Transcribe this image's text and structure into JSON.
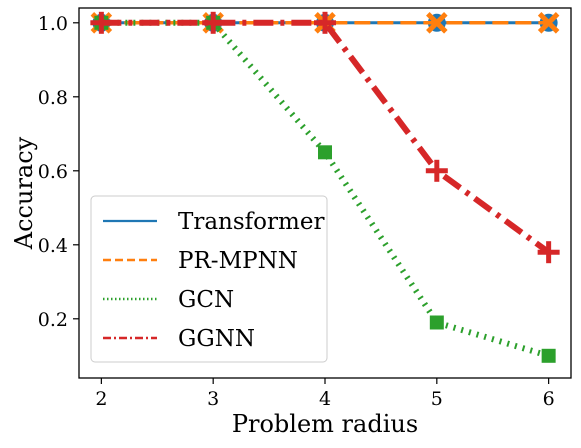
{
  "chart_data": {
    "type": "line",
    "title": "",
    "xlabel": "Problem radius",
    "ylabel": "Accuracy",
    "x": [
      2,
      3,
      4,
      5,
      6
    ],
    "xlim": [
      1.8,
      6.2
    ],
    "ylim": [
      0.04,
      1.04
    ],
    "xticks": [
      "2",
      "3",
      "4",
      "5",
      "6"
    ],
    "yticks": [
      "0.2",
      "0.4",
      "0.6",
      "0.8",
      "1.0"
    ],
    "ytick_values": [
      0.2,
      0.4,
      0.6,
      0.8,
      1.0
    ],
    "grid": false,
    "legend_position": "lower-left",
    "series": [
      {
        "name": "Transformer",
        "values": [
          1.0,
          1.0,
          1.0,
          1.0,
          1.0
        ],
        "color": "#1f77b4",
        "style": "solid",
        "marker": "circle"
      },
      {
        "name": "PR-MPNN",
        "values": [
          1.0,
          1.0,
          1.0,
          1.0,
          1.0
        ],
        "color": "#ff7f0e",
        "style": "dashed",
        "marker": "x"
      },
      {
        "name": "GCN",
        "values": [
          1.0,
          1.0,
          0.65,
          0.19,
          0.1
        ],
        "color": "#2ca02c",
        "style": "dotted",
        "marker": "square"
      },
      {
        "name": "GGNN",
        "values": [
          1.0,
          1.0,
          1.0,
          0.6,
          0.38
        ],
        "color": "#d62728",
        "style": "dashdot",
        "marker": "plus"
      }
    ]
  }
}
